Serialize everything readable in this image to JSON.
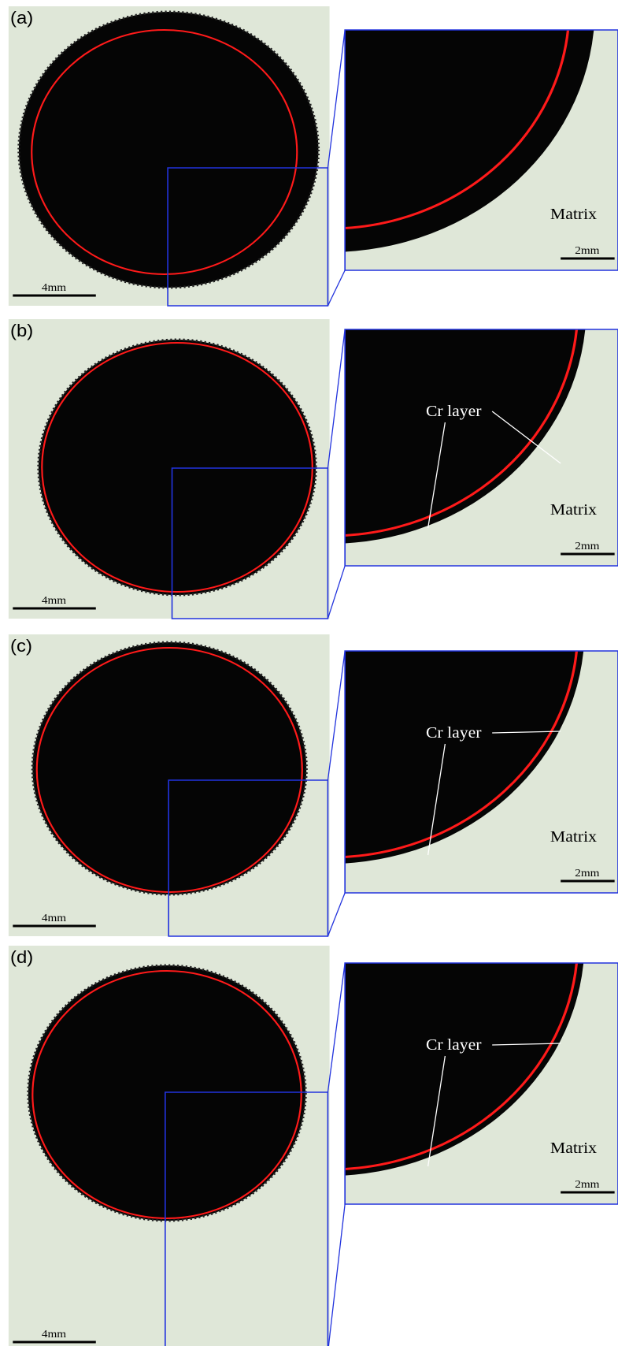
{
  "panels": [
    {
      "label": "(a)",
      "scale_left": "4mm",
      "scale_right": "2mm",
      "matrix": "Matrix"
    },
    {
      "label": "(b)",
      "scale_left": "4mm",
      "scale_right": "2mm",
      "matrix": "Matrix",
      "cr_layer": "Cr layer"
    },
    {
      "label": "(c)",
      "scale_left": "4mm",
      "scale_right": "2mm",
      "matrix": "Matrix",
      "cr_layer": "Cr layer"
    },
    {
      "label": "(d)",
      "scale_left": "4mm",
      "scale_right": "2mm",
      "matrix": "Matrix",
      "cr_layer": "Cr layer"
    }
  ]
}
